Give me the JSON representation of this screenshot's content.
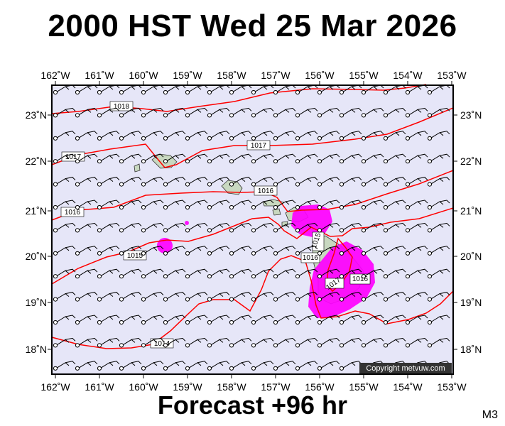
{
  "title": "2000 HST Wed 25 Mar 2026",
  "footer": "Forecast +96 hr",
  "map_code": "M3",
  "copyright": "Copyright metvuw.com",
  "colors": {
    "ocean": "#e6e6f8",
    "isobar": "#ff0000",
    "rain": "#ff00ff",
    "land": "#c8d8c0",
    "frame": "#000000"
  },
  "lon_ticks": [
    "162˚W",
    "161˚W",
    "160˚W",
    "159˚W",
    "158˚W",
    "157˚W",
    "156˚W",
    "155˚W",
    "154˚W",
    "153˚W"
  ],
  "lat_ticks": [
    "23˚N",
    "22˚N",
    "21˚N",
    "20˚N",
    "19˚N",
    "18˚N"
  ],
  "isobar_labels": [
    "1018",
    "1017",
    "1017",
    "1016",
    "1016",
    "1015",
    "1015",
    "1014",
    "1016",
    "1017",
    "1016"
  ]
}
